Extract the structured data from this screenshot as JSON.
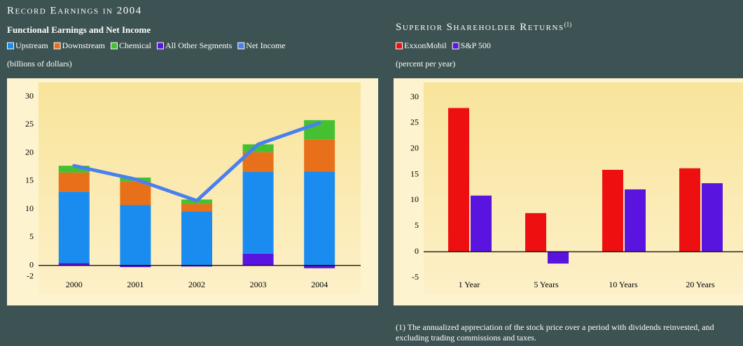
{
  "chart_data": [
    {
      "type": "bar",
      "stacked": true,
      "title": "Record Earnings in 2004",
      "subtitle": "Functional Earnings and Net Income",
      "y_label": "(billions of dollars)",
      "categories": [
        "2000",
        "2001",
        "2002",
        "2003",
        "2004"
      ],
      "ylim": [
        -5,
        30
      ],
      "yticks": [
        -2,
        0,
        5,
        10,
        15,
        20,
        25,
        30
      ],
      "grid": false,
      "series": [
        {
          "name": "Upstream",
          "color": "#1a8cf0",
          "values": [
            12.7,
            10.7,
            9.6,
            14.5,
            16.7
          ]
        },
        {
          "name": "Downstream",
          "color": "#e8701a",
          "values": [
            3.4,
            4.2,
            1.3,
            3.5,
            5.7
          ]
        },
        {
          "name": "Chemical",
          "color": "#44c030",
          "values": [
            1.2,
            0.7,
            0.8,
            1.4,
            3.4
          ]
        },
        {
          "name": "All Other Segments",
          "color": "#5a14e0",
          "values": [
            0.4,
            -0.3,
            -0.2,
            2.1,
            -0.5
          ]
        },
        {
          "name": "Net Income",
          "color": "#4a7ff0",
          "type": "line",
          "values": [
            17.7,
            15.3,
            11.5,
            21.5,
            25.3
          ]
        }
      ]
    },
    {
      "type": "bar",
      "stacked": false,
      "title": "Superior Shareholder Returns",
      "title_note": "(1)",
      "y_label": "(percent per year)",
      "categories": [
        "1 Year",
        "5 Years",
        "10 Years",
        "20 Years"
      ],
      "ylim": [
        -5,
        30
      ],
      "yticks": [
        -5,
        0,
        5,
        10,
        15,
        20,
        25,
        30
      ],
      "grid": false,
      "series": [
        {
          "name": "ExxonMobil",
          "color": "#ee1010",
          "values": [
            27.9,
            7.5,
            15.9,
            16.2
          ]
        },
        {
          "name": "S&P 500",
          "color": "#5a14e0",
          "values": [
            10.9,
            -2.3,
            12.1,
            13.3
          ]
        }
      ],
      "footnote": "(1) The annualized appreciation of the stock price over a period with dividends reinvested, and excluding trading commissions and taxes."
    }
  ]
}
